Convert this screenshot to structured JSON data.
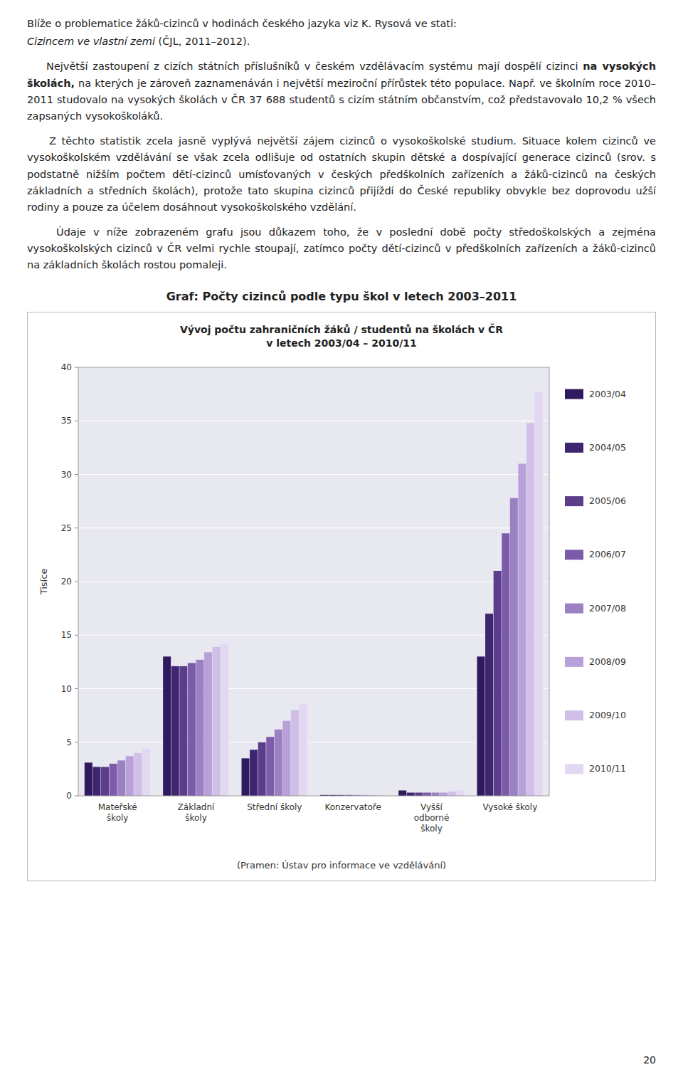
{
  "text_blocks": [
    [
      {
        "text": "Blíže o problematice žáků-cizinců v hodinách českého jazyka viz K. Rysová ve stati:",
        "style": "normal"
      }
    ],
    [
      {
        "text": "Cizincem ve vlastní zemi",
        "style": "italic"
      },
      {
        "text": " (ČJL, 2011–2012).",
        "style": "normal"
      }
    ],
    [
      {
        "text": "    Největší zastoupení z cizích státních příslušníků v českém vzdělávacím systému mají dospělí cizinci ",
        "style": "normal"
      },
      {
        "text": "na vysokých školách,",
        "style": "bold"
      },
      {
        "text": " na kterých je zároveň zaznamenáván i největší meziroční přírůstek této populace. Např. ve školním roce 2010–2011 studovalo na vysokých školách v ČR 37 688 studentů s cizím státním občanstvím, což představovalo 10,2 % všech zapsaných vysokoškoláků.",
        "style": "normal"
      }
    ],
    [
      {
        "text": "    Z těchto statistik zcela jasně vyplývá největší zájem cizinců o vysokoškolské studium. Situace kolem cizinců ve vysokoškolském vzdělávání se však zcela odlišuje od ostatních skupin dětské a dospívající generace cizinců (srov. s podstatně nižším počtem dětí-cizinců umísťovaných v českých předškolních zařízeních a žáků-cizinců na českých základních a středních školách), protože tato skupina cizinců přijíždí do České republiky obvykle bez doprovodu užší rodiny a pouze za účelem dosáhnout vysokoškolského vzdělání.",
        "style": "normal"
      }
    ],
    [
      {
        "text": "    Údaje v níže zobrazeném grafu jsou důkazem toho, že v poslední době počty středoškolských a zejména vysokoškolských cizinců v ČR velmi rychle stoupají, zatímco počty dětí-cizinců v předškolních zařízeních a žáků-cizinců na základních školách rostou pomaleji.",
        "style": "normal"
      }
    ]
  ],
  "heading": "Graf: Počty cizinců podle typu škol v letech 2003–2011",
  "source": "(Pramen: Ústav pro informace ve vzdělávání)",
  "page_number": "20",
  "chart_data": {
    "type": "bar",
    "title": "Vývoj počtu zahraničních žáků / studentů na školách v ČR\nv letech 2003/04 – 2010/11",
    "ylabel": "Tisíce",
    "categories": [
      "Mateřské\nškoly",
      "Základní\nškoly",
      "Střední školy",
      "Konzervatoře",
      "Vyšší\nodborné\nškoly",
      "Vysoké školy"
    ],
    "series": [
      {
        "name": "2003/04",
        "color": "#2E1A5C",
        "values": [
          3.1,
          13.0,
          3.5,
          0.08,
          0.5,
          13.0
        ]
      },
      {
        "name": "2004/05",
        "color": "#3D2570",
        "values": [
          2.7,
          12.1,
          4.3,
          0.08,
          0.3,
          17.0
        ]
      },
      {
        "name": "2005/06",
        "color": "#5C3D8A",
        "values": [
          2.7,
          12.1,
          5.0,
          0.08,
          0.3,
          21.0
        ]
      },
      {
        "name": "2006/07",
        "color": "#7B5BAA",
        "values": [
          3.0,
          12.4,
          5.5,
          0.08,
          0.3,
          24.5
        ]
      },
      {
        "name": "2007/08",
        "color": "#9B80C2",
        "values": [
          3.3,
          12.7,
          6.2,
          0.08,
          0.3,
          27.8
        ]
      },
      {
        "name": "2008/09",
        "color": "#B8A0D8",
        "values": [
          3.7,
          13.4,
          7.0,
          0.08,
          0.3,
          31.0
        ]
      },
      {
        "name": "2009/10",
        "color": "#D0C0E8",
        "values": [
          4.0,
          13.9,
          8.0,
          0.08,
          0.4,
          34.8
        ]
      },
      {
        "name": "2010/11",
        "color": "#E2D8F2",
        "values": [
          4.4,
          14.2,
          8.6,
          0.08,
          0.5,
          37.7
        ]
      }
    ],
    "ylim": [
      0,
      40
    ],
    "yticks": [
      0,
      5,
      10,
      15,
      20,
      25,
      30,
      35,
      40
    ],
    "grid": true,
    "legend": "right"
  }
}
